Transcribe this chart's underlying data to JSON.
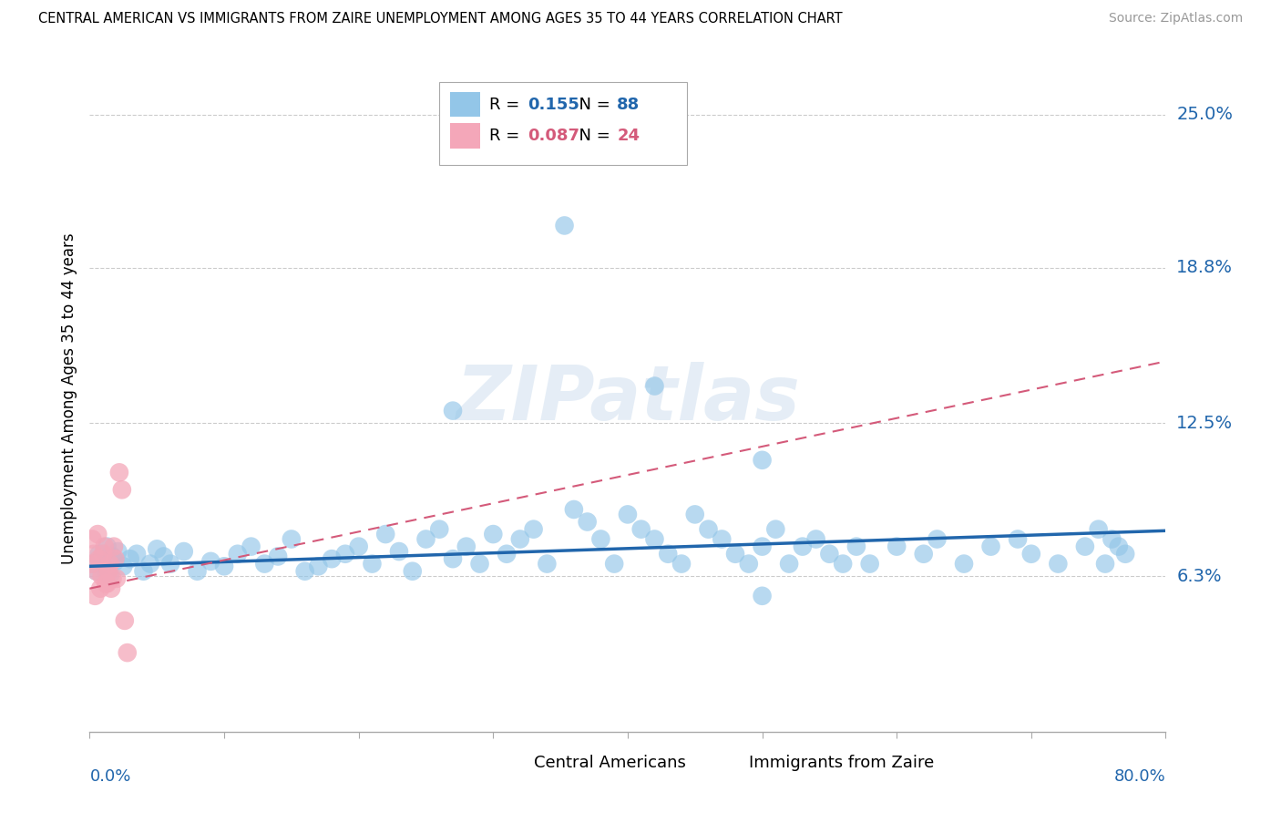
{
  "title": "CENTRAL AMERICAN VS IMMIGRANTS FROM ZAIRE UNEMPLOYMENT AMONG AGES 35 TO 44 YEARS CORRELATION CHART",
  "source": "Source: ZipAtlas.com",
  "ylabel": "Unemployment Among Ages 35 to 44 years",
  "ytick_vals": [
    0.063,
    0.125,
    0.188,
    0.25
  ],
  "ytick_labels": [
    "6.3%",
    "12.5%",
    "18.8%",
    "25.0%"
  ],
  "xmin": 0.0,
  "xmax": 0.8,
  "ymin": 0.0,
  "ymax": 0.27,
  "R_blue": 0.155,
  "N_blue": 88,
  "R_pink": 0.087,
  "N_pink": 24,
  "blue_scatter_color": "#93c6e8",
  "pink_scatter_color": "#f4a7b9",
  "blue_line_color": "#2166ac",
  "pink_line_color": "#d45a7a",
  "legend_label_blue": "Central Americans",
  "legend_label_pink": "Immigrants from Zaire",
  "watermark": "ZIPatlas",
  "background_color": "#ffffff",
  "grid_color": "#cccccc",
  "blue_slope": 0.018,
  "blue_intercept": 0.067,
  "pink_slope": 0.115,
  "pink_intercept": 0.058,
  "x_blue": [
    0.003,
    0.005,
    0.007,
    0.009,
    0.011,
    0.013,
    0.015,
    0.017,
    0.019,
    0.021,
    0.025,
    0.03,
    0.035,
    0.04,
    0.045,
    0.05,
    0.055,
    0.06,
    0.07,
    0.08,
    0.09,
    0.1,
    0.11,
    0.12,
    0.13,
    0.14,
    0.15,
    0.16,
    0.17,
    0.18,
    0.19,
    0.2,
    0.21,
    0.22,
    0.23,
    0.24,
    0.25,
    0.26,
    0.27,
    0.28,
    0.29,
    0.3,
    0.31,
    0.32,
    0.33,
    0.34,
    0.353,
    0.36,
    0.37,
    0.38,
    0.39,
    0.4,
    0.41,
    0.42,
    0.43,
    0.44,
    0.45,
    0.46,
    0.47,
    0.48,
    0.49,
    0.5,
    0.51,
    0.52,
    0.53,
    0.54,
    0.55,
    0.56,
    0.57,
    0.58,
    0.6,
    0.62,
    0.63,
    0.65,
    0.67,
    0.69,
    0.7,
    0.72,
    0.74,
    0.75,
    0.76,
    0.77,
    0.755,
    0.765,
    0.5,
    0.42,
    0.27,
    0.5
  ],
  "y_blue": [
    0.068,
    0.065,
    0.072,
    0.07,
    0.066,
    0.075,
    0.063,
    0.071,
    0.069,
    0.073,
    0.067,
    0.07,
    0.072,
    0.065,
    0.068,
    0.074,
    0.071,
    0.068,
    0.073,
    0.065,
    0.069,
    0.067,
    0.072,
    0.075,
    0.068,
    0.071,
    0.078,
    0.065,
    0.067,
    0.07,
    0.072,
    0.075,
    0.068,
    0.08,
    0.073,
    0.065,
    0.078,
    0.082,
    0.07,
    0.075,
    0.068,
    0.08,
    0.072,
    0.078,
    0.082,
    0.068,
    0.205,
    0.09,
    0.085,
    0.078,
    0.068,
    0.088,
    0.082,
    0.078,
    0.072,
    0.068,
    0.088,
    0.082,
    0.078,
    0.072,
    0.068,
    0.075,
    0.082,
    0.068,
    0.075,
    0.078,
    0.072,
    0.068,
    0.075,
    0.068,
    0.075,
    0.072,
    0.078,
    0.068,
    0.075,
    0.078,
    0.072,
    0.068,
    0.075,
    0.082,
    0.078,
    0.072,
    0.068,
    0.075,
    0.11,
    0.14,
    0.13,
    0.055
  ],
  "x_pink": [
    0.001,
    0.003,
    0.005,
    0.007,
    0.009,
    0.011,
    0.013,
    0.015,
    0.017,
    0.019,
    0.002,
    0.004,
    0.006,
    0.008,
    0.01,
    0.012,
    0.014,
    0.016,
    0.018,
    0.02,
    0.022,
    0.024,
    0.026,
    0.028
  ],
  "y_pink": [
    0.068,
    0.072,
    0.065,
    0.07,
    0.063,
    0.075,
    0.06,
    0.068,
    0.062,
    0.07,
    0.078,
    0.055,
    0.08,
    0.058,
    0.072,
    0.06,
    0.065,
    0.058,
    0.075,
    0.062,
    0.105,
    0.098,
    0.045,
    0.032
  ]
}
